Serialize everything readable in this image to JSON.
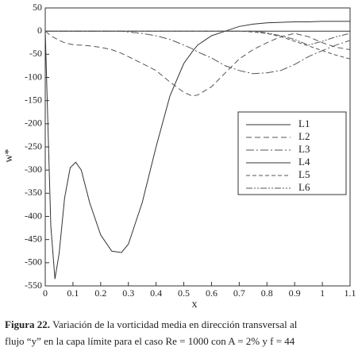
{
  "chart_data": {
    "type": "line",
    "x_label": "x",
    "y_label": "w*",
    "x": [
      0,
      0.02,
      0.035,
      0.05,
      0.07,
      0.09,
      0.11,
      0.13,
      0.16,
      0.2,
      0.24,
      0.275,
      0.3,
      0.35,
      0.4,
      0.45,
      0.5,
      0.53,
      0.55,
      0.6,
      0.65,
      0.7,
      0.75,
      0.8,
      0.85,
      0.9,
      0.95,
      1.0,
      1.05,
      1.1
    ],
    "series": [
      {
        "name": "L1",
        "color": "#333333",
        "dash": "none",
        "values": [
          0,
          -420,
          -535,
          -480,
          -360,
          -295,
          -283,
          -300,
          -370,
          -440,
          -475,
          -478,
          -460,
          -370,
          -250,
          -140,
          -70,
          -45,
          -30,
          -10,
          0,
          10,
          15,
          18,
          19,
          20,
          20,
          21,
          21,
          21
        ]
      },
      {
        "name": "L2",
        "color": "#555555",
        "dash": "7,4",
        "values": [
          0,
          -10,
          -15,
          -20,
          -25,
          -28,
          -30,
          -30,
          -32,
          -35,
          -40,
          -48,
          -55,
          -70,
          -85,
          -110,
          -132,
          -140,
          -138,
          -120,
          -90,
          -60,
          -40,
          -25,
          -12,
          -5,
          -12,
          -25,
          -35,
          -40
        ]
      },
      {
        "name": "L3",
        "color": "#555555",
        "dash": "10,3,2,3",
        "values": [
          0,
          0,
          0,
          0,
          0,
          0,
          0,
          0,
          0,
          0,
          0,
          0,
          -2,
          -5,
          -10,
          -18,
          -30,
          -38,
          -45,
          -58,
          -75,
          -85,
          -92,
          -90,
          -85,
          -72,
          -55,
          -42,
          -30,
          -20
        ]
      },
      {
        "name": "L4",
        "color": "#333333",
        "dash": "none",
        "values": [
          0,
          0,
          0,
          0,
          0,
          0,
          0,
          0,
          0,
          0,
          0,
          0,
          0,
          0,
          0,
          0,
          0,
          0,
          0,
          0,
          0,
          0,
          0,
          0,
          0,
          0,
          0,
          0,
          0,
          0
        ]
      },
      {
        "name": "L5",
        "color": "#555555",
        "dash": "5,3",
        "values": [
          0,
          0,
          0,
          0,
          0,
          0,
          0,
          0,
          0,
          0,
          0,
          0,
          0,
          0,
          0,
          0,
          0,
          0,
          0,
          0,
          0,
          0,
          -2,
          -5,
          -12,
          -22,
          -32,
          -42,
          -52,
          -60
        ]
      },
      {
        "name": "L6",
        "color": "#555555",
        "dash": "8,2,2,2,2,2",
        "values": [
          0,
          0,
          0,
          0,
          0,
          0,
          0,
          0,
          0,
          0,
          0,
          0,
          0,
          0,
          0,
          0,
          0,
          0,
          0,
          0,
          0,
          0,
          0,
          -4,
          -10,
          -18,
          -30,
          -22,
          -12,
          -5
        ]
      }
    ],
    "xlim": [
      0,
      1.1
    ],
    "xticks": [
      0,
      0.1,
      0.2,
      0.3,
      0.4,
      0.5,
      0.6,
      0.7,
      0.8,
      0.9,
      1,
      1.1
    ],
    "ylim": [
      -550,
      50
    ],
    "yticks": [
      50,
      0,
      -50,
      -100,
      -150,
      -200,
      -250,
      -300,
      -350,
      -400,
      -450,
      -500,
      -550
    ]
  },
  "caption": {
    "label": "Figura 22.",
    "lines": [
      "Variación de la vorticidad media en dirección transversal al",
      "flujo “y” en la capa límite para el caso Re = 1000 con A = 2% y f = 44"
    ]
  }
}
